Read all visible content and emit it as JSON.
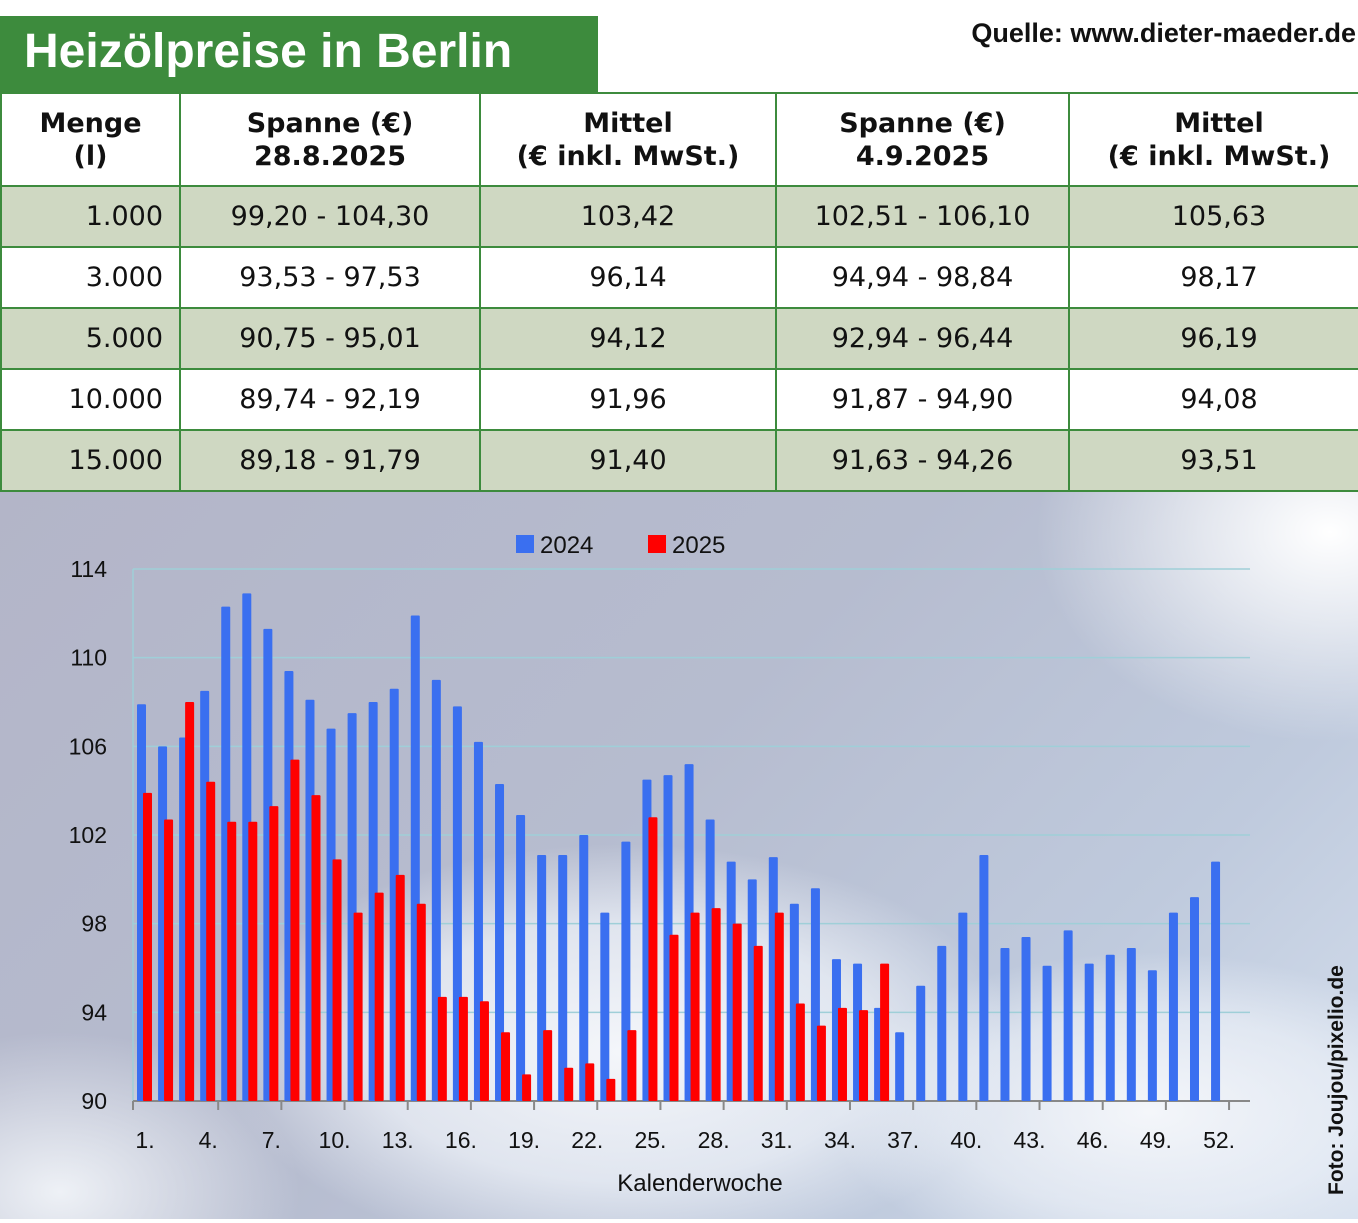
{
  "title": "Heizölpreise in Berlin",
  "source": "Quelle: www.dieter-maeder.de",
  "photo_credit": "Foto: Joujou/pixelio.de",
  "table": {
    "headers": [
      [
        "Menge",
        "(l)"
      ],
      [
        "Spanne (€)",
        "28.8.2025"
      ],
      [
        "Mittel",
        "(€ inkl. MwSt.)"
      ],
      [
        "Spanne (€)",
        "4.9.2025"
      ],
      [
        "Mittel",
        "(€ inkl. MwSt.)"
      ]
    ],
    "rows": [
      [
        "1.000",
        "99,20 - 104,30",
        "103,42",
        "102,51 - 106,10",
        "105,63"
      ],
      [
        "3.000",
        "93,53 - 97,53",
        "96,14",
        "94,94 - 98,84",
        "98,17"
      ],
      [
        "5.000",
        "90,75 - 95,01",
        "94,12",
        "92,94 - 96,44",
        "96,19"
      ],
      [
        "10.000",
        "89,74 - 92,19",
        "91,96",
        "91,87 - 94,90",
        "94,08"
      ],
      [
        "15.000",
        "89,18 - 91,79",
        "91,40",
        "91,63 - 94,26",
        "93,51"
      ]
    ]
  },
  "chart_data": {
    "type": "bar",
    "xlabel": "Kalenderwoche",
    "ylabel": "",
    "ylim": [
      90,
      114
    ],
    "yticks": [
      90,
      94,
      98,
      102,
      106,
      110,
      114
    ],
    "xtick_labels": [
      "1.",
      "4.",
      "7.",
      "10.",
      "13.",
      "16.",
      "19.",
      "22.",
      "25.",
      "28.",
      "31.",
      "34.",
      "37.",
      "40.",
      "43.",
      "46.",
      "49.",
      "52."
    ],
    "grid": true,
    "legend": "top-center",
    "series": [
      {
        "name": "2024",
        "color": "#3a6ff0",
        "values": [
          107.9,
          106.0,
          106.4,
          108.5,
          112.3,
          112.9,
          111.3,
          109.4,
          108.1,
          106.8,
          107.5,
          108.0,
          108.6,
          111.9,
          109.0,
          107.8,
          106.2,
          104.3,
          102.9,
          101.1,
          101.1,
          102.0,
          98.5,
          101.7,
          104.5,
          104.7,
          105.2,
          102.7,
          100.8,
          100.0,
          101.0,
          98.9,
          99.6,
          96.4,
          96.2,
          94.2,
          93.1,
          95.2,
          97.0,
          98.5,
          101.1,
          96.9,
          97.4,
          96.1,
          97.7,
          96.2,
          96.6,
          96.9,
          95.9,
          98.5,
          99.2,
          100.8
        ]
      },
      {
        "name": "2025",
        "color": "#ff0000",
        "values": [
          103.9,
          102.7,
          108.0,
          104.4,
          102.6,
          102.6,
          103.3,
          105.4,
          103.8,
          100.9,
          98.5,
          99.4,
          100.2,
          98.9,
          94.7,
          94.7,
          94.5,
          93.1,
          91.2,
          93.2,
          91.5,
          91.7,
          91.0,
          93.2,
          102.8,
          97.5,
          98.5,
          98.7,
          98.0,
          97.0,
          98.5,
          94.4,
          93.4,
          94.2,
          94.1,
          96.2
        ]
      }
    ]
  }
}
